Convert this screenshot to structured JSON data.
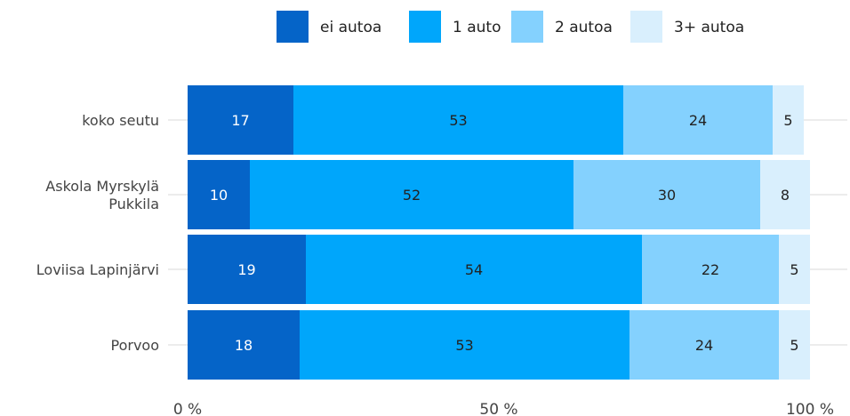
{
  "chart_data": {
    "type": "bar",
    "orientation": "horizontal",
    "stacked": true,
    "categories": [
      "koko seutu",
      "Askola Myrskylä Pukkila",
      "Loviisa Lapinjärvi",
      "Porvoo"
    ],
    "category_lines": [
      [
        "koko seutu"
      ],
      [
        "Askola Myrskylä",
        "Pukkila"
      ],
      [
        "Loviisa Lapinjärvi"
      ],
      [
        "Porvoo"
      ]
    ],
    "series": [
      {
        "name": "ei autoa",
        "color": "#0564c8",
        "label_color": "#ffffff",
        "values": [
          17,
          10,
          19,
          18
        ]
      },
      {
        "name": "1 auto",
        "color": "#00a6fb",
        "label_color": "#222222",
        "values": [
          53,
          52,
          54,
          53
        ]
      },
      {
        "name": "2 autoa",
        "color": "#84d1fe",
        "label_color": "#222222",
        "values": [
          24,
          30,
          22,
          24
        ]
      },
      {
        "name": "3+ autoa",
        "color": "#d9effd",
        "label_color": "#222222",
        "values": [
          5,
          8,
          5,
          5
        ]
      }
    ],
    "x_ticks": [
      {
        "value": 0,
        "label": "0 %"
      },
      {
        "value": 50,
        "label": "50 %"
      },
      {
        "value": 100,
        "label": "100 %"
      }
    ],
    "xlim": [
      0,
      100
    ],
    "legend_position": "top-right",
    "grid": "horizontal lines at each category"
  }
}
